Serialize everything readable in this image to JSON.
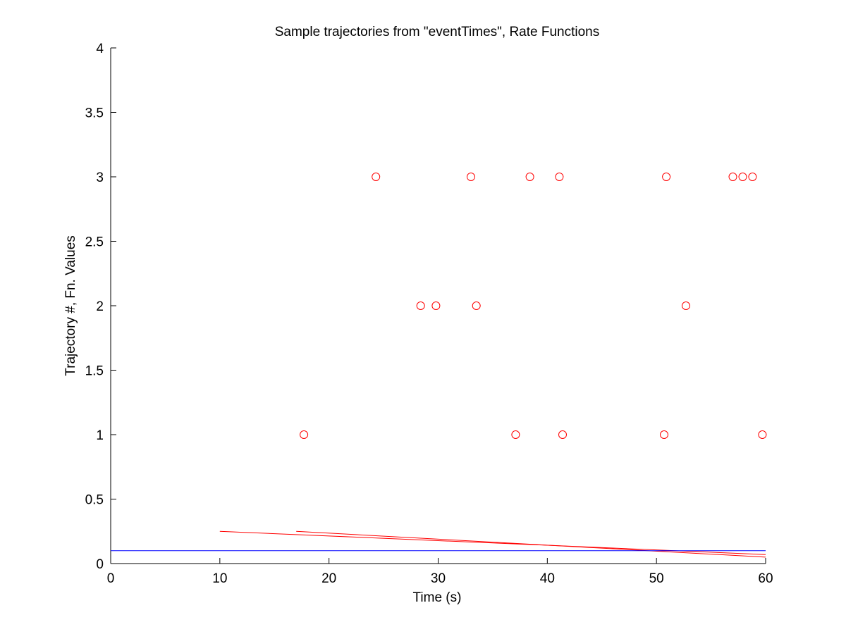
{
  "chart_data": {
    "type": "scatter",
    "title": "Sample trajectories from \"eventTimes\", Rate Functions",
    "xlabel": "Time (s)",
    "ylabel": "Trajectory #, Fn. Values",
    "xlim": [
      0,
      60
    ],
    "ylim": [
      0,
      4
    ],
    "xticks": [
      0,
      10,
      20,
      30,
      40,
      50,
      60
    ],
    "yticks": [
      0,
      0.5,
      1,
      1.5,
      2,
      2.5,
      3,
      3.5,
      4
    ],
    "xtick_labels": [
      "0",
      "10",
      "20",
      "30",
      "40",
      "50",
      "60"
    ],
    "ytick_labels": [
      "0",
      "0.5",
      "1",
      "1.5",
      "2",
      "2.5",
      "3",
      "3.5",
      "4"
    ],
    "grid": false,
    "legend": "none",
    "series": [
      {
        "kind": "markers",
        "marker": "circle",
        "color": "#ff0000",
        "points": [
          [
            17.7,
            1
          ],
          [
            37.1,
            1
          ],
          [
            41.4,
            1
          ],
          [
            50.7,
            1
          ],
          [
            59.7,
            1
          ],
          [
            28.4,
            2
          ],
          [
            29.8,
            2
          ],
          [
            33.5,
            2
          ],
          [
            52.7,
            2
          ],
          [
            24.3,
            3
          ],
          [
            33.0,
            3
          ],
          [
            38.4,
            3
          ],
          [
            41.1,
            3
          ],
          [
            50.9,
            3
          ],
          [
            57.0,
            3
          ],
          [
            57.9,
            3
          ],
          [
            58.8,
            3
          ]
        ]
      },
      {
        "kind": "line",
        "color": "#ff0000",
        "x": [
          10,
          60
        ],
        "y": [
          0.25,
          0.07
        ]
      },
      {
        "kind": "line",
        "color": "#ff0000",
        "x": [
          17,
          60
        ],
        "y": [
          0.25,
          0.05
        ]
      },
      {
        "kind": "line",
        "color": "#0000ff",
        "x": [
          0,
          60
        ],
        "y": [
          0.1,
          0.1
        ]
      }
    ]
  }
}
